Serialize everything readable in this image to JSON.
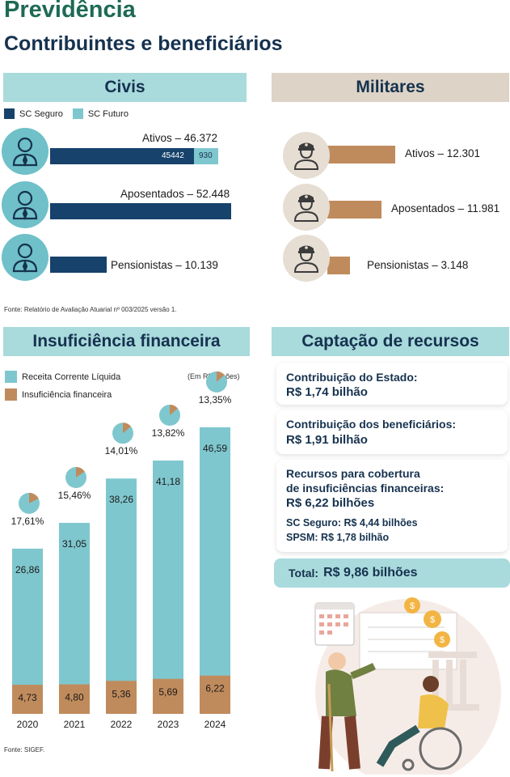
{
  "header": {
    "title": "Previdência",
    "subtitle": "Contribuintes e beneficiários"
  },
  "civis": {
    "heading": "Civis",
    "legend": [
      {
        "label": "SC Seguro",
        "color": "#16426b"
      },
      {
        "label": "SC Futuro",
        "color": "#7fc7ce"
      }
    ],
    "rows": [
      {
        "label": "Ativos – 46.372",
        "value": 46372,
        "seguro": 45442,
        "futuro": 930,
        "seguro_label": "45442",
        "futuro_label": "930"
      },
      {
        "label": "Aposentados – 52.448",
        "value": 52448
      },
      {
        "label": "Pensionistas – 10.139",
        "value": 10139
      }
    ]
  },
  "militares": {
    "heading": "Militares",
    "rows": [
      {
        "label": "Ativos – 12.301",
        "value": 12301
      },
      {
        "label": "Aposentados – 11.981",
        "value": 11981
      },
      {
        "label": "Pensionistas – 3.148",
        "value": 3148
      }
    ]
  },
  "fonte_top": "Fonte: Relatório de Avaliação Atuarial nº 003/2025 versão 1.",
  "insuficiencia": {
    "heading": "Insuficiência financeira",
    "unit_note": "(Em R$ bilhões)",
    "legend": [
      {
        "label": "Receita Corrente Líquida",
        "color": "#7fc7ce"
      },
      {
        "label": "Insuficiência financeira",
        "color": "#c08b5c"
      }
    ]
  },
  "chart_data": {
    "type": "bar",
    "categories": [
      "2020",
      "2021",
      "2022",
      "2023",
      "2024"
    ],
    "series": [
      {
        "name": "Receita Corrente Líquida",
        "values": [
          26.86,
          31.05,
          38.26,
          41.18,
          46.59
        ],
        "labels": [
          "26,86",
          "31,05",
          "38,26",
          "41,18",
          "46,59"
        ],
        "color": "#7fc7ce"
      },
      {
        "name": "Insuficiência financeira",
        "values": [
          4.73,
          4.8,
          5.36,
          5.69,
          6.22
        ],
        "labels": [
          "4,73",
          "4,80",
          "5,36",
          "5,69",
          "6,22"
        ],
        "color": "#c08b5c"
      }
    ],
    "percentages": [
      17.61,
      15.46,
      14.01,
      13.82,
      13.35
    ],
    "percentage_labels": [
      "17,61%",
      "15,46%",
      "14,01%",
      "13,82%",
      "13,35%"
    ],
    "ylim": [
      0,
      50
    ],
    "grid": false,
    "legend_position": "top-left"
  },
  "fonte_bottom": "Fonte: SIGEF.",
  "captacao": {
    "heading": "Captação de recursos",
    "cards": [
      {
        "label": "Contribuição do Estado:",
        "value": "R$ 1,74 bilhão"
      },
      {
        "label": "Contribuição dos beneficiários:",
        "value": "R$ 1,91 bilhão"
      }
    ],
    "cobertura": {
      "label_line1": "Recursos para cobertura",
      "label_line2": "de insuficiências financeiras:",
      "value": "R$ 6,22 bilhões",
      "sub1": "SC Seguro: R$ 4,44 bilhões",
      "sub2": "SPSM: R$ 1,78 bilhão"
    },
    "total_label": "Total:",
    "total_value": "R$ 9,86 bilhões"
  },
  "colors": {
    "navy": "#16426b",
    "teal": "#7fc7ce",
    "tan": "#c08b5c",
    "header_teal": "#a9dadc",
    "header_beige": "#ddd3c6",
    "title_green": "#1d6a55",
    "title_navy": "#16324f"
  }
}
